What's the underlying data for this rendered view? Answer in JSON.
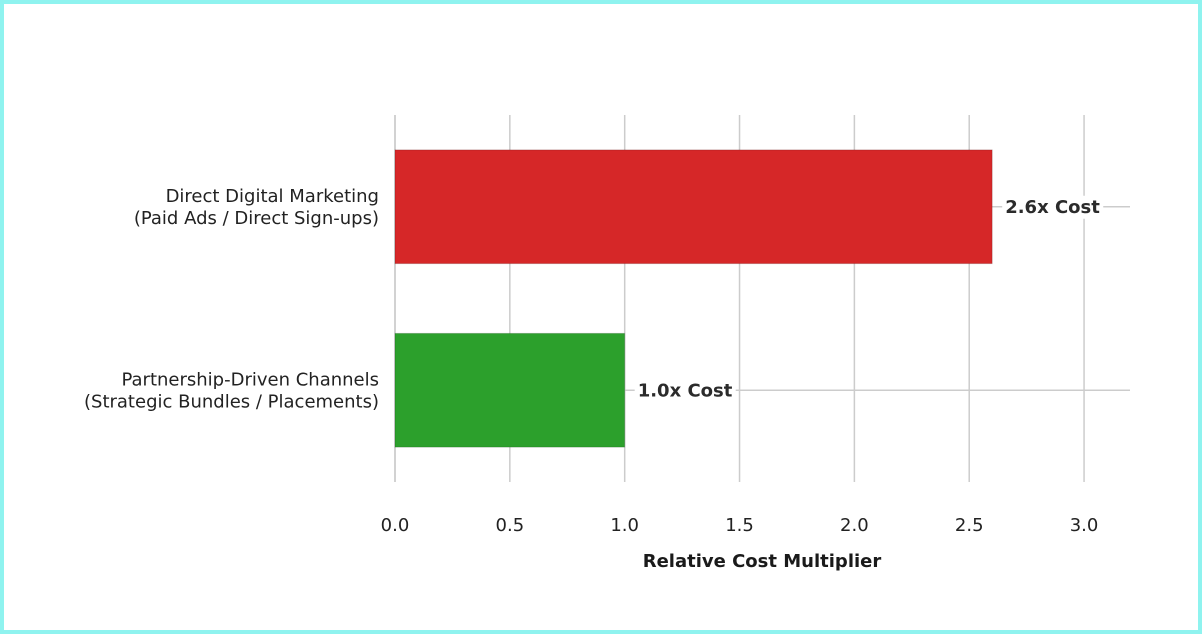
{
  "chart_data": {
    "type": "bar",
    "orientation": "horizontal",
    "title": "",
    "xlabel": "Relative Cost Multiplier",
    "ylabel": "",
    "xlim": [
      0,
      3.2
    ],
    "x_ticks": [
      "0.0",
      "0.5",
      "1.0",
      "1.5",
      "2.0",
      "2.5",
      "3.0"
    ],
    "grid": true,
    "bars": [
      {
        "category_lines": [
          "Direct Digital Marketing",
          "(Paid Ads / Direct Sign-ups)"
        ],
        "value": 2.6,
        "label": "2.6x Cost",
        "color": "#d62728"
      },
      {
        "category_lines": [
          "Partnership-Driven Channels",
          "(Strategic Bundles / Placements)"
        ],
        "value": 1.0,
        "label": "1.0x Cost",
        "color": "#2ca02c"
      }
    ]
  }
}
